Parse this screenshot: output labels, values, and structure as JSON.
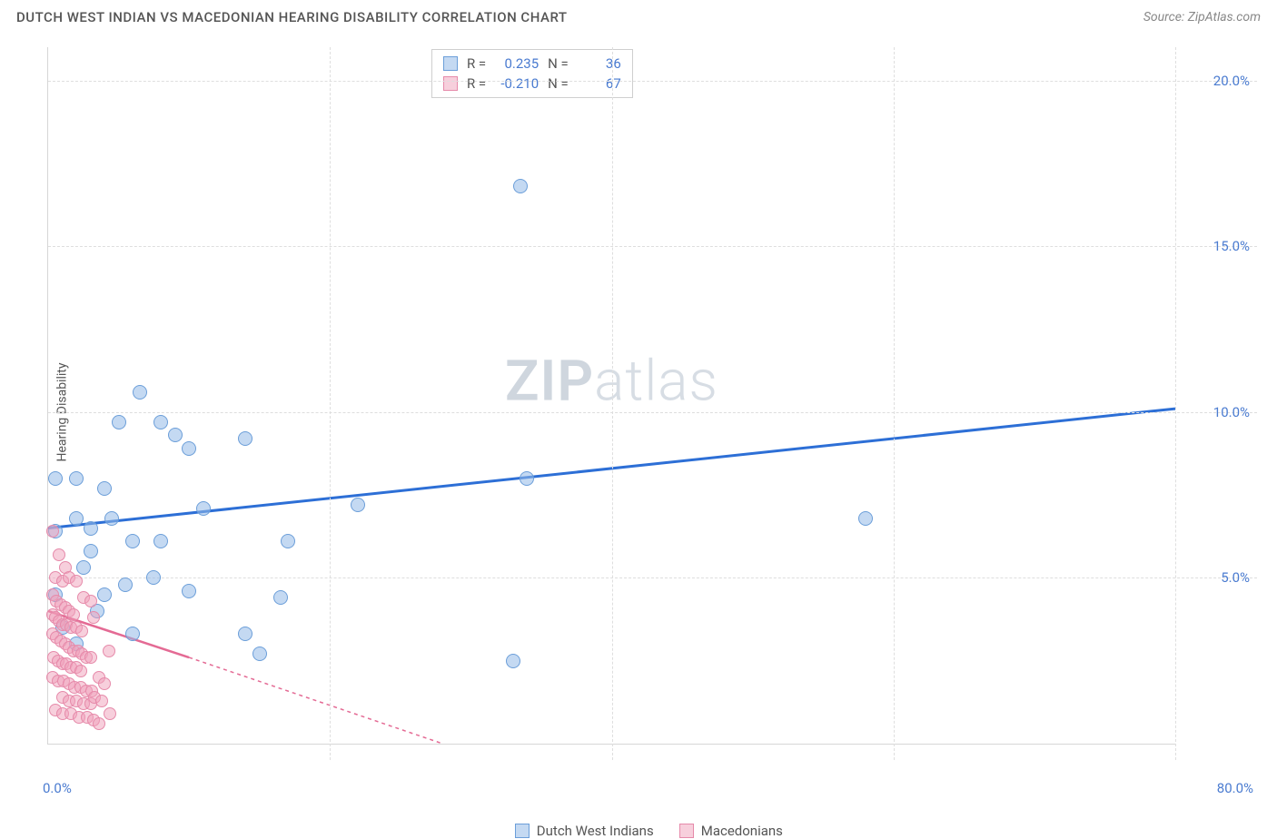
{
  "header": {
    "title": "DUTCH WEST INDIAN VS MACEDONIAN HEARING DISABILITY CORRELATION CHART",
    "source": "Source: ZipAtlas.com"
  },
  "ylabel": "Hearing Disability",
  "watermark": {
    "bold": "ZIP",
    "light": "atlas"
  },
  "chart": {
    "type": "scatter",
    "background_color": "#ffffff",
    "grid_color": "#dedede",
    "axis_color": "#d6d6d6",
    "xlim": [
      0,
      80
    ],
    "ylim": [
      0,
      21
    ],
    "xticks": [
      0,
      20,
      40,
      60,
      80
    ],
    "yticks": [
      5,
      10,
      15,
      20
    ],
    "ytick_labels": [
      "5.0%",
      "10.0%",
      "15.0%",
      "20.0%"
    ],
    "xtick_left": "0.0%",
    "xtick_right": "80.0%",
    "tick_color": "#4a7bd0",
    "tick_fontsize": 15,
    "label_fontsize": 14,
    "marker_size_blue": 16,
    "marker_size_pink": 14,
    "series": [
      {
        "name": "Dutch West Indians",
        "color_fill": "rgba(148,186,232,0.55)",
        "color_stroke": "#6b9ed9",
        "marker": "circle",
        "regression": {
          "x1": 0,
          "y1": 6.5,
          "x2": 80,
          "y2": 10.1,
          "color": "#2d6fd6",
          "width": 3,
          "dash": "none"
        },
        "points": [
          [
            0.5,
            8.0
          ],
          [
            2.0,
            8.0
          ],
          [
            6.5,
            10.6
          ],
          [
            3.0,
            6.5
          ],
          [
            4.0,
            7.7
          ],
          [
            5.0,
            9.7
          ],
          [
            8.0,
            9.7
          ],
          [
            10.0,
            8.9
          ],
          [
            9.0,
            9.3
          ],
          [
            14.0,
            9.2
          ],
          [
            17.0,
            6.1
          ],
          [
            3.0,
            5.8
          ],
          [
            6.0,
            6.1
          ],
          [
            8.0,
            6.1
          ],
          [
            11.0,
            7.1
          ],
          [
            0.5,
            6.4
          ],
          [
            2.5,
            5.3
          ],
          [
            4.0,
            4.5
          ],
          [
            6.0,
            3.3
          ],
          [
            10.0,
            4.6
          ],
          [
            14.0,
            3.3
          ],
          [
            15.0,
            2.7
          ],
          [
            22.0,
            7.2
          ],
          [
            33.5,
            16.8
          ],
          [
            34.0,
            8.0
          ],
          [
            33.0,
            2.5
          ],
          [
            58.0,
            6.8
          ],
          [
            1.0,
            3.5
          ],
          [
            2.0,
            3.0
          ],
          [
            3.5,
            4.0
          ],
          [
            5.5,
            4.8
          ],
          [
            7.5,
            5.0
          ],
          [
            16.5,
            4.4
          ],
          [
            0.5,
            4.5
          ],
          [
            2.0,
            6.8
          ],
          [
            4.5,
            6.8
          ]
        ]
      },
      {
        "name": "Macedonians",
        "color_fill": "rgba(240,160,185,0.5)",
        "color_stroke": "#e68aaa",
        "marker": "circle",
        "regression": {
          "x1": 0,
          "y1": 4.0,
          "x2": 28,
          "y2": 0.0,
          "extend_x": 28,
          "color": "#e46a94",
          "width": 2.5,
          "dash": "4 4"
        },
        "solid_segment": {
          "x1": 0,
          "y1": 4.0,
          "x2": 10,
          "y2": 2.6
        },
        "points": [
          [
            0.3,
            6.4
          ],
          [
            0.8,
            5.7
          ],
          [
            1.2,
            5.3
          ],
          [
            0.5,
            5.0
          ],
          [
            1.0,
            4.9
          ],
          [
            1.5,
            5.0
          ],
          [
            2.0,
            4.9
          ],
          [
            2.5,
            4.4
          ],
          [
            0.3,
            4.5
          ],
          [
            0.6,
            4.3
          ],
          [
            0.9,
            4.2
          ],
          [
            1.2,
            4.1
          ],
          [
            1.5,
            4.0
          ],
          [
            1.8,
            3.9
          ],
          [
            0.3,
            3.9
          ],
          [
            0.5,
            3.8
          ],
          [
            0.8,
            3.7
          ],
          [
            1.0,
            3.6
          ],
          [
            1.3,
            3.6
          ],
          [
            1.6,
            3.5
          ],
          [
            2.0,
            3.5
          ],
          [
            2.4,
            3.4
          ],
          [
            3.0,
            4.3
          ],
          [
            3.2,
            3.8
          ],
          [
            0.3,
            3.3
          ],
          [
            0.6,
            3.2
          ],
          [
            0.9,
            3.1
          ],
          [
            1.2,
            3.0
          ],
          [
            1.5,
            2.9
          ],
          [
            1.8,
            2.8
          ],
          [
            2.1,
            2.8
          ],
          [
            2.4,
            2.7
          ],
          [
            2.7,
            2.6
          ],
          [
            3.0,
            2.6
          ],
          [
            0.4,
            2.6
          ],
          [
            0.7,
            2.5
          ],
          [
            1.0,
            2.4
          ],
          [
            1.3,
            2.4
          ],
          [
            1.6,
            2.3
          ],
          [
            2.0,
            2.3
          ],
          [
            2.3,
            2.2
          ],
          [
            0.3,
            2.0
          ],
          [
            0.7,
            1.9
          ],
          [
            1.1,
            1.9
          ],
          [
            1.5,
            1.8
          ],
          [
            1.9,
            1.7
          ],
          [
            2.3,
            1.7
          ],
          [
            2.7,
            1.6
          ],
          [
            3.1,
            1.6
          ],
          [
            3.6,
            2.0
          ],
          [
            1.0,
            1.4
          ],
          [
            1.5,
            1.3
          ],
          [
            2.0,
            1.3
          ],
          [
            2.5,
            1.2
          ],
          [
            3.0,
            1.2
          ],
          [
            0.5,
            1.0
          ],
          [
            1.0,
            0.9
          ],
          [
            1.6,
            0.9
          ],
          [
            2.2,
            0.8
          ],
          [
            2.8,
            0.8
          ],
          [
            3.3,
            1.4
          ],
          [
            3.8,
            1.3
          ],
          [
            3.2,
            0.7
          ],
          [
            3.6,
            0.6
          ],
          [
            4.4,
            0.9
          ],
          [
            4.0,
            1.8
          ],
          [
            4.3,
            2.8
          ]
        ]
      }
    ]
  },
  "stats": {
    "rows": [
      {
        "swatch": "blue",
        "r_label": "R =",
        "r_val": "0.235",
        "n_label": "N =",
        "n_val": "36"
      },
      {
        "swatch": "pink",
        "r_label": "R =",
        "r_val": "-0.210",
        "n_label": "N =",
        "n_val": "67"
      }
    ]
  },
  "legend": {
    "items": [
      {
        "swatch": "blue",
        "label": "Dutch West Indians"
      },
      {
        "swatch": "pink",
        "label": "Macedonians"
      }
    ]
  }
}
